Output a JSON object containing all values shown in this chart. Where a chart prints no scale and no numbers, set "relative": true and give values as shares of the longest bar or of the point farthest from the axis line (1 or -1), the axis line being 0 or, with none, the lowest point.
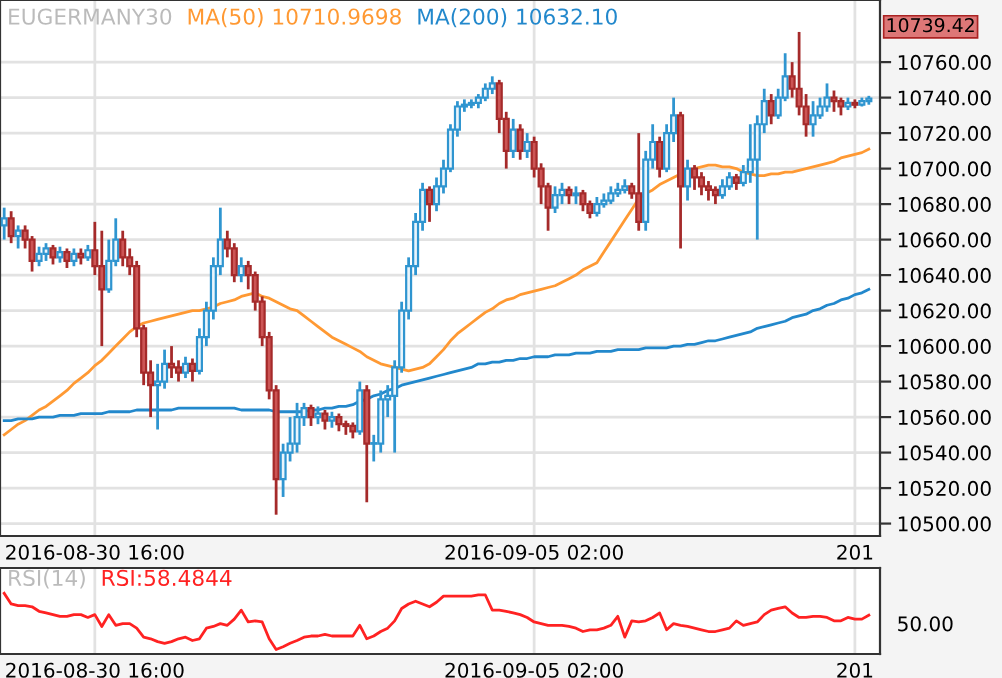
{
  "chart_data": [
    {
      "type": "candlestick",
      "title": "EUGERMANY30",
      "legend": "top left",
      "grid": true,
      "categories": [
        null,
        null,
        null,
        null,
        null,
        null,
        null,
        null,
        null,
        null,
        null,
        null,
        null,
        "2016-08-30 16:00",
        null,
        null,
        null,
        null,
        null,
        null,
        null,
        null,
        null,
        null,
        null,
        null,
        null,
        null,
        null,
        null,
        null,
        null,
        null,
        null,
        null,
        null,
        null,
        null,
        null,
        null,
        null,
        null,
        null,
        null,
        null,
        null,
        null,
        null,
        null,
        null,
        null,
        null,
        null,
        null,
        null,
        null,
        null,
        null,
        null,
        null,
        null,
        null,
        null,
        null,
        null,
        null,
        null,
        null,
        null,
        null,
        null,
        null,
        null,
        null,
        null,
        null,
        "2016-09-05 02:00",
        null,
        null,
        null,
        null,
        null,
        null,
        null,
        null,
        null,
        null,
        null,
        null,
        null,
        null,
        null,
        null,
        null,
        null,
        null,
        null,
        null,
        null,
        null,
        null,
        null,
        null,
        null,
        null,
        null,
        null,
        null,
        null,
        null,
        null,
        null,
        null,
        null,
        null,
        null,
        null,
        null,
        null,
        null,
        null,
        null,
        "201",
        null,
        null
      ],
      "ohlc": [
        [
          10668,
          10678,
          10660,
          10672
        ],
        [
          10672,
          10676,
          10658,
          10662
        ],
        [
          10662,
          10668,
          10655,
          10665
        ],
        [
          10665,
          10668,
          10655,
          10660
        ],
        [
          10660,
          10662,
          10642,
          10648
        ],
        [
          10648,
          10656,
          10645,
          10652
        ],
        [
          10652,
          10658,
          10648,
          10655
        ],
        [
          10655,
          10657,
          10646,
          10650
        ],
        [
          10650,
          10656,
          10647,
          10653
        ],
        [
          10653,
          10655,
          10644,
          10648
        ],
        [
          10648,
          10655,
          10645,
          10652
        ],
        [
          10652,
          10655,
          10646,
          10650
        ],
        [
          10650,
          10657,
          10648,
          10654
        ],
        [
          10654,
          10670,
          10640,
          10645
        ],
        [
          10645,
          10665,
          10600,
          10632
        ],
        [
          10632,
          10660,
          10630,
          10648
        ],
        [
          10648,
          10672,
          10645,
          10660
        ],
        [
          10660,
          10665,
          10645,
          10650
        ],
        [
          10650,
          10655,
          10640,
          10645
        ],
        [
          10645,
          10648,
          10605,
          10610
        ],
        [
          10610,
          10612,
          10578,
          10585
        ],
        [
          10585,
          10592,
          10560,
          10578
        ],
        [
          10578,
          10590,
          10553,
          10580
        ],
        [
          10580,
          10598,
          10576,
          10590
        ],
        [
          10590,
          10600,
          10582,
          10588
        ],
        [
          10588,
          10592,
          10580,
          10585
        ],
        [
          10585,
          10594,
          10582,
          10590
        ],
        [
          10590,
          10593,
          10580,
          10586
        ],
        [
          10586,
          10610,
          10584,
          10605
        ],
        [
          10605,
          10625,
          10600,
          10620
        ],
        [
          10620,
          10650,
          10615,
          10645
        ],
        [
          10645,
          10678,
          10640,
          10660
        ],
        [
          10660,
          10665,
          10650,
          10655
        ],
        [
          10655,
          10658,
          10636,
          10640
        ],
        [
          10640,
          10650,
          10636,
          10645
        ],
        [
          10645,
          10648,
          10632,
          10640
        ],
        [
          10640,
          10642,
          10620,
          10625
        ],
        [
          10625,
          10628,
          10600,
          10605
        ],
        [
          10605,
          10608,
          10570,
          10575
        ],
        [
          10575,
          10578,
          10505,
          10525
        ],
        [
          10525,
          10545,
          10515,
          10540
        ],
        [
          10540,
          10560,
          10535,
          10545
        ],
        [
          10545,
          10568,
          10540,
          10560
        ],
        [
          10560,
          10568,
          10555,
          10565
        ],
        [
          10565,
          10567,
          10555,
          10560
        ],
        [
          10560,
          10566,
          10556,
          10562
        ],
        [
          10562,
          10564,
          10553,
          10558
        ],
        [
          10558,
          10563,
          10554,
          10560
        ],
        [
          10560,
          10562,
          10552,
          10556
        ],
        [
          10556,
          10558,
          10550,
          10555
        ],
        [
          10555,
          10557,
          10548,
          10552
        ],
        [
          10552,
          10580,
          10550,
          10575
        ],
        [
          10575,
          10578,
          10512,
          10545
        ],
        [
          10545,
          10550,
          10535,
          10545
        ],
        [
          10545,
          10575,
          10540,
          10570
        ],
        [
          10570,
          10578,
          10560,
          10572
        ],
        [
          10572,
          10592,
          10540,
          10588
        ],
        [
          10588,
          10625,
          10585,
          10620
        ],
        [
          10620,
          10650,
          10615,
          10645
        ],
        [
          10645,
          10675,
          10640,
          10670
        ],
        [
          10670,
          10692,
          10665,
          10688
        ],
        [
          10688,
          10690,
          10670,
          10680
        ],
        [
          10680,
          10695,
          10676,
          10690
        ],
        [
          10690,
          10705,
          10686,
          10700
        ],
        [
          10700,
          10725,
          10698,
          10722
        ],
        [
          10722,
          10738,
          10718,
          10735
        ],
        [
          10735,
          10739,
          10732,
          10736
        ],
        [
          10736,
          10739,
          10734,
          10737
        ],
        [
          10737,
          10742,
          10734,
          10740
        ],
        [
          10740,
          10748,
          10738,
          10745
        ],
        [
          10745,
          10752,
          10742,
          10748
        ],
        [
          10748,
          10750,
          10720,
          10728
        ],
        [
          10728,
          10732,
          10700,
          10710
        ],
        [
          10710,
          10728,
          10706,
          10722
        ],
        [
          10722,
          10725,
          10705,
          10710
        ],
        [
          10710,
          10720,
          10706,
          10715
        ],
        [
          10715,
          10718,
          10695,
          10700
        ],
        [
          10700,
          10703,
          10680,
          10690
        ],
        [
          10690,
          10692,
          10665,
          10678
        ],
        [
          10678,
          10690,
          10675,
          10685
        ],
        [
          10685,
          10692,
          10680,
          10688
        ],
        [
          10688,
          10690,
          10680,
          10685
        ],
        [
          10685,
          10690,
          10680,
          10686
        ],
        [
          10686,
          10688,
          10676,
          10680
        ],
        [
          10680,
          10682,
          10672,
          10675
        ],
        [
          10675,
          10684,
          10673,
          10680
        ],
        [
          10680,
          10686,
          10678,
          10682
        ],
        [
          10682,
          10690,
          10680,
          10686
        ],
        [
          10686,
          10692,
          10684,
          10688
        ],
        [
          10688,
          10694,
          10686,
          10690
        ],
        [
          10690,
          10692,
          10683,
          10686
        ],
        [
          10686,
          10720,
          10665,
          10670
        ],
        [
          10670,
          10710,
          10665,
          10705
        ],
        [
          10705,
          10725,
          10700,
          10715
        ],
        [
          10715,
          10718,
          10695,
          10700
        ],
        [
          10700,
          10725,
          10698,
          10720
        ],
        [
          10720,
          10740,
          10715,
          10730
        ],
        [
          10730,
          10732,
          10655,
          10690
        ],
        [
          10690,
          10705,
          10682,
          10700
        ],
        [
          10700,
          10702,
          10688,
          10695
        ],
        [
          10695,
          10698,
          10685,
          10690
        ],
        [
          10690,
          10693,
          10682,
          10688
        ],
        [
          10688,
          10690,
          10680,
          10685
        ],
        [
          10685,
          10694,
          10683,
          10690
        ],
        [
          10690,
          10698,
          10688,
          10695
        ],
        [
          10695,
          10697,
          10688,
          10692
        ],
        [
          10692,
          10702,
          10690,
          10698
        ],
        [
          10698,
          10725,
          10692,
          10705
        ],
        [
          10705,
          10730,
          10660,
          10725
        ],
        [
          10725,
          10745,
          10720,
          10738
        ],
        [
          10738,
          10742,
          10725,
          10730
        ],
        [
          10730,
          10745,
          10728,
          10740
        ],
        [
          10740,
          10765,
          10738,
          10752
        ],
        [
          10752,
          10760,
          10740,
          10745
        ],
        [
          10745,
          10777,
          10730,
          10735
        ],
        [
          10735,
          10742,
          10718,
          10725
        ],
        [
          10725,
          10738,
          10718,
          10730
        ],
        [
          10730,
          10740,
          10728,
          10735
        ],
        [
          10735,
          10748,
          10732,
          10740
        ],
        [
          10740,
          10744,
          10732,
          10738
        ],
        [
          10738,
          10740,
          10730,
          10735
        ],
        [
          10735,
          10740,
          10733,
          10737
        ],
        [
          10737,
          10739,
          10734,
          10736
        ],
        [
          10736,
          10740,
          10735,
          10738
        ],
        [
          10738,
          10741,
          10736,
          10739.42
        ]
      ],
      "series": [
        {
          "name": "MA(50) 10710.9698",
          "type": "line",
          "color": "#ff9933",
          "values": [
            10550,
            10553,
            10556,
            10558,
            10561,
            10564,
            10566,
            10569,
            10572,
            10575,
            10579,
            10582,
            10585,
            10589,
            10592,
            10596,
            10600,
            10604,
            10608,
            10611,
            10613,
            10614,
            10615,
            10616,
            10617,
            10618,
            10619,
            10620,
            10620,
            10621,
            10622,
            10624,
            10625,
            10626,
            10628,
            10629,
            10630,
            10628,
            10627,
            10625,
            10623,
            10621,
            10620,
            10617,
            10614,
            10611,
            10608,
            10605,
            10603,
            10601,
            10599,
            10597,
            10594,
            10592,
            10590,
            10589,
            10588,
            10587,
            10586,
            10587,
            10588,
            10590,
            10594,
            10598,
            10603,
            10607,
            10610,
            10613,
            10616,
            10619,
            10621,
            10624,
            10626,
            10627,
            10629,
            10630,
            10631,
            10632,
            10633,
            10634,
            10636,
            10638,
            10640,
            10643,
            10645,
            10647,
            10653,
            10659,
            10665,
            10671,
            10677,
            10683,
            10686,
            10688,
            10691,
            10693,
            10695,
            10697,
            10698,
            10700,
            10701,
            10702,
            10702,
            10701,
            10701,
            10700,
            10698,
            10697,
            10696,
            10696,
            10697,
            10697,
            10698,
            10698,
            10699,
            10700,
            10701,
            10702,
            10703,
            10704,
            10706,
            10707,
            10708,
            10709,
            10711
          ]
        },
        {
          "name": "MA(200) 10632.10",
          "type": "line",
          "color": "#2288cc",
          "values": [
            10558,
            10558,
            10559,
            10559,
            10559,
            10560,
            10560,
            10560,
            10561,
            10561,
            10561,
            10562,
            10562,
            10562,
            10562,
            10563,
            10563,
            10563,
            10563,
            10564,
            10564,
            10564,
            10564,
            10564,
            10564,
            10565,
            10565,
            10565,
            10565,
            10565,
            10565,
            10565,
            10565,
            10565,
            10564,
            10564,
            10564,
            10564,
            10564,
            10563,
            10563,
            10563,
            10563,
            10563,
            10564,
            10564,
            10565,
            10565,
            10566,
            10566,
            10567,
            10569,
            10570,
            10572,
            10573,
            10575,
            10576,
            10578,
            10579,
            10580,
            10581,
            10582,
            10583,
            10584,
            10585,
            10586,
            10587,
            10588,
            10590,
            10590,
            10591,
            10591,
            10592,
            10592,
            10593,
            10593,
            10594,
            10594,
            10594,
            10595,
            10595,
            10595,
            10596,
            10596,
            10596,
            10597,
            10597,
            10597,
            10598,
            10598,
            10598,
            10598,
            10599,
            10599,
            10599,
            10599,
            10600,
            10600,
            10601,
            10601,
            10602,
            10603,
            10603,
            10604,
            10605,
            10606,
            10607,
            10608,
            10610,
            10611,
            10612,
            10613,
            10614,
            10616,
            10617,
            10618,
            10620,
            10621,
            10623,
            10624,
            10626,
            10627,
            10629,
            10630,
            10632
          ]
        }
      ],
      "ylim": [
        10493,
        10795
      ],
      "yticks": [
        {
          "value": 10500,
          "label": "10500.00"
        },
        {
          "value": 10520,
          "label": "10520.00"
        },
        {
          "value": 10540,
          "label": "10540.00"
        },
        {
          "value": 10560,
          "label": "10560.00"
        },
        {
          "value": 10580,
          "label": "10580.00"
        },
        {
          "value": 10600,
          "label": "10600.00"
        },
        {
          "value": 10620,
          "label": "10620.00"
        },
        {
          "value": 10640,
          "label": "10640.00"
        },
        {
          "value": 10660,
          "label": "10660.00"
        },
        {
          "value": 10680,
          "label": "10680.00"
        },
        {
          "value": 10700,
          "label": "10700.00"
        },
        {
          "value": 10720,
          "label": "10720.00"
        },
        {
          "value": 10740,
          "label": "10740.00"
        },
        {
          "value": 10760,
          "label": "10760.00"
        }
      ],
      "annotations": [
        "10739.42"
      ]
    },
    {
      "type": "line",
      "title": "RSI(14)",
      "legend": "top left",
      "grid": "x",
      "relative": true,
      "annotations": [
        "50.00"
      ],
      "categories": [
        null,
        null,
        null,
        null,
        null,
        null,
        null,
        null,
        null,
        null,
        null,
        null,
        null,
        "2016-08-30 16:00",
        null,
        null,
        null,
        null,
        null,
        null,
        null,
        null,
        null,
        null,
        null,
        null,
        null,
        null,
        null,
        null,
        null,
        null,
        null,
        null,
        null,
        null,
        null,
        null,
        null,
        null,
        null,
        null,
        null,
        null,
        null,
        null,
        null,
        null,
        null,
        null,
        null,
        null,
        null,
        null,
        null,
        null,
        null,
        null,
        null,
        null,
        null,
        null,
        null,
        null,
        null,
        null,
        null,
        null,
        null,
        null,
        null,
        null,
        null,
        null,
        null,
        null,
        "2016-09-05 02:00",
        null,
        null,
        null,
        null,
        null,
        null,
        null,
        null,
        null,
        null,
        null,
        null,
        null,
        null,
        null,
        null,
        null,
        null,
        null,
        null,
        null,
        null,
        null,
        null,
        null,
        null,
        null,
        null,
        null,
        null,
        null,
        null,
        null,
        null,
        null,
        null,
        null,
        null,
        null,
        null,
        null,
        null,
        null,
        null,
        null,
        "201",
        null,
        null
      ],
      "series": [
        {
          "name": "RSI:58.4844",
          "color": "#ff2222",
          "values": [
            1.0,
            0.81,
            0.78,
            0.78,
            0.76,
            0.68,
            0.65,
            0.62,
            0.59,
            0.59,
            0.62,
            0.62,
            0.57,
            0.62,
            0.41,
            0.62,
            0.43,
            0.46,
            0.46,
            0.38,
            0.22,
            0.19,
            0.14,
            0.11,
            0.14,
            0.19,
            0.22,
            0.16,
            0.19,
            0.38,
            0.41,
            0.46,
            0.43,
            0.54,
            0.7,
            0.49,
            0.51,
            0.49,
            0.19,
            0,
            0.05,
            0.11,
            0.16,
            0.22,
            0.24,
            0.24,
            0.27,
            0.24,
            0.24,
            0.24,
            0.24,
            0.43,
            0.19,
            0.24,
            0.32,
            0.38,
            0.51,
            0.73,
            0.81,
            0.86,
            0.81,
            0.76,
            0.84,
            0.95,
            0.95,
            0.95,
            0.95,
            0.95,
            0.97,
            0.97,
            0.7,
            0.7,
            0.68,
            0.65,
            0.62,
            0.57,
            0.49,
            0.46,
            0.43,
            0.43,
            0.43,
            0.41,
            0.38,
            0.32,
            0.35,
            0.35,
            0.38,
            0.43,
            0.59,
            0.22,
            0.51,
            0.49,
            0.51,
            0.57,
            0.65,
            0.35,
            0.46,
            0.43,
            0.41,
            0.38,
            0.35,
            0.32,
            0.32,
            0.35,
            0.38,
            0.51,
            0.43,
            0.46,
            0.49,
            0.62,
            0.7,
            0.73,
            0.76,
            0.65,
            0.57,
            0.57,
            0.59,
            0.59,
            0.57,
            0.51,
            0.51,
            0.57,
            0.54,
            0.54,
            0.61
          ]
        }
      ]
    }
  ]
}
